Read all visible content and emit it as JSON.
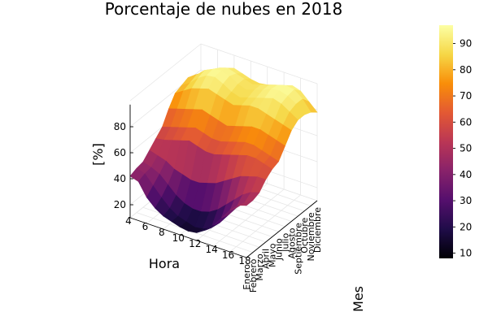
{
  "chart_data": {
    "type": "surface",
    "title": "Porcentaje de nubes en 2018",
    "xlabel": "Hora",
    "ylabel": "Mes",
    "zlabel": "[%]",
    "x_ticks": [
      4,
      6,
      8,
      10,
      12,
      14,
      16,
      18
    ],
    "y_ticks": [
      "Enero",
      "Febrero",
      "Marzo",
      "Abril",
      "Mayo",
      "Junio",
      "Julio",
      "Agosto",
      "Septiembre",
      "Octubre",
      "Noviembre",
      "Diciembre"
    ],
    "z_ticks": [
      20,
      40,
      60,
      80
    ],
    "colorbar_ticks": [
      10,
      20,
      30,
      40,
      50,
      60,
      70,
      80,
      90
    ],
    "colorbar_range": [
      8,
      97
    ],
    "colormap": "inferno",
    "x": [
      4,
      5,
      6,
      7,
      8,
      9,
      10,
      11,
      12,
      13,
      14,
      15,
      16,
      17,
      18
    ],
    "z": [
      [
        42,
        40,
        30,
        24,
        20,
        18,
        16,
        15,
        16,
        20,
        26,
        34,
        42,
        48,
        50
      ],
      [
        44,
        42,
        35,
        28,
        22,
        18,
        16,
        14,
        15,
        18,
        24,
        32,
        40,
        46,
        50
      ],
      [
        45,
        43,
        40,
        34,
        28,
        24,
        22,
        22,
        24,
        28,
        34,
        40,
        46,
        50,
        52
      ],
      [
        50,
        48,
        46,
        42,
        40,
        38,
        38,
        40,
        42,
        46,
        50,
        54,
        56,
        58,
        58
      ],
      [
        55,
        56,
        58,
        60,
        62,
        60,
        58,
        58,
        60,
        62,
        64,
        66,
        66,
        64,
        62
      ],
      [
        60,
        62,
        64,
        66,
        68,
        66,
        64,
        64,
        66,
        68,
        70,
        70,
        68,
        66,
        64
      ],
      [
        70,
        72,
        74,
        76,
        78,
        76,
        74,
        72,
        74,
        76,
        78,
        78,
        76,
        74,
        72
      ],
      [
        78,
        82,
        86,
        88,
        90,
        88,
        86,
        84,
        86,
        88,
        88,
        86,
        84,
        82,
        80
      ],
      [
        80,
        84,
        90,
        94,
        95,
        92,
        88,
        86,
        88,
        90,
        92,
        94,
        92,
        88,
        84
      ],
      [
        82,
        86,
        92,
        95,
        96,
        94,
        90,
        88,
        90,
        92,
        95,
        96,
        94,
        90,
        84
      ],
      [
        80,
        84,
        88,
        92,
        94,
        92,
        90,
        88,
        90,
        92,
        94,
        96,
        95,
        90,
        82
      ],
      [
        76,
        80,
        84,
        88,
        90,
        88,
        86,
        85,
        86,
        88,
        90,
        92,
        90,
        84,
        78
      ]
    ]
  }
}
